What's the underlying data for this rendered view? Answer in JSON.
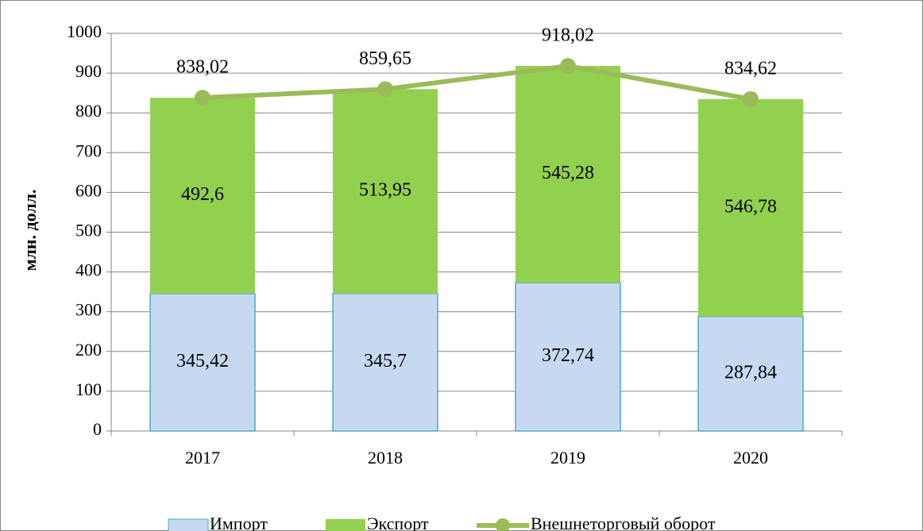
{
  "chart_data": {
    "type": "bar",
    "stacked": true,
    "y_label": "млн. долл.",
    "categories": [
      "2017",
      "2018",
      "2019",
      "2020"
    ],
    "ylim": [
      0,
      1000
    ],
    "yticks": [
      0,
      100,
      200,
      300,
      400,
      500,
      600,
      700,
      800,
      900,
      1000
    ],
    "grid": true,
    "legend": "bottom",
    "series": [
      {
        "name": "Импорт",
        "color": "#c6d9f1",
        "values": [
          345.42,
          345.7,
          372.74,
          287.84
        ],
        "value_labels": [
          "345,42",
          "345,7",
          "372,74",
          "287,84"
        ]
      },
      {
        "name": "Экспорт",
        "color": "#92d050",
        "values": [
          492.6,
          513.95,
          545.28,
          546.78
        ],
        "value_labels": [
          "492,6",
          "513,95",
          "545,28",
          "546,78"
        ]
      },
      {
        "name": "Внешнеторговый оборот",
        "type": "line",
        "color": "#9bbb59",
        "values": [
          838.02,
          859.65,
          918.02,
          834.62
        ],
        "value_labels": [
          "838,02",
          "859,65",
          "918,02",
          "834,62"
        ]
      }
    ]
  }
}
